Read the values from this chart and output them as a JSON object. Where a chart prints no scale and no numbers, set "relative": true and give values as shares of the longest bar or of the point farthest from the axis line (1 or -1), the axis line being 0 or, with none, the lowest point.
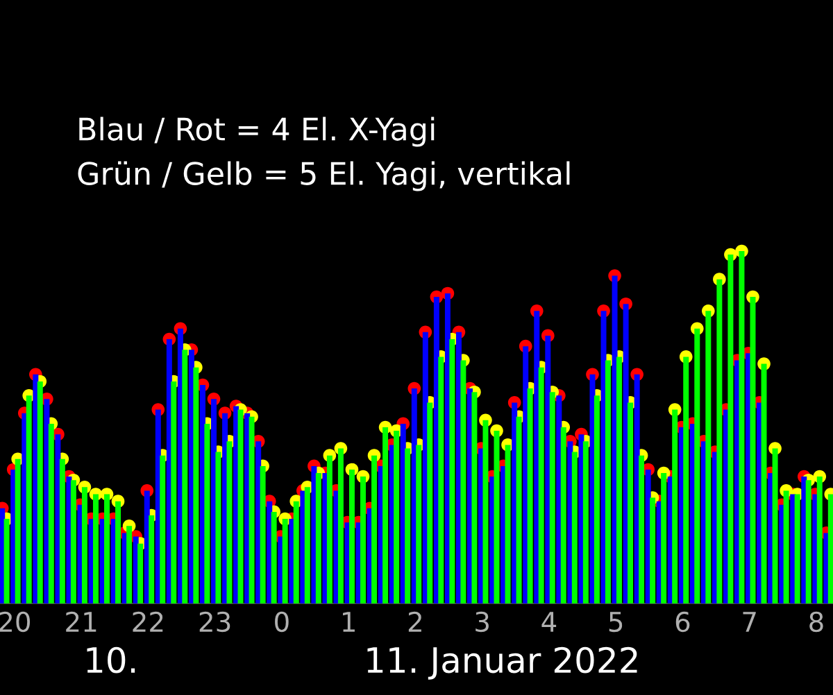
{
  "chart_data": {
    "type": "bar",
    "relative": true,
    "grid": false,
    "xlim": [
      "2022-01-10T19:47",
      "2022-01-11T08:15"
    ],
    "xticks": [
      {
        "value": "2022-01-10T20:00",
        "label": "20"
      },
      {
        "value": "2022-01-10T21:00",
        "label": "21"
      },
      {
        "value": "2022-01-10T22:00",
        "label": "22"
      },
      {
        "value": "2022-01-10T23:00",
        "label": "23"
      },
      {
        "value": "2022-01-11T00:00",
        "label": "0"
      },
      {
        "value": "2022-01-11T01:00",
        "label": "1"
      },
      {
        "value": "2022-01-11T02:00",
        "label": "2"
      },
      {
        "value": "2022-01-11T03:00",
        "label": "3"
      },
      {
        "value": "2022-01-11T04:00",
        "label": "4"
      },
      {
        "value": "2022-01-11T05:00",
        "label": "5"
      },
      {
        "value": "2022-01-11T06:00",
        "label": "6"
      },
      {
        "value": "2022-01-11T07:00",
        "label": "7"
      },
      {
        "value": "2022-01-11T08:00",
        "label": "8"
      }
    ],
    "tick_labels": "x",
    "series": [
      {
        "color": "#0000ff",
        "x": [
          "2022-01-10T19:49",
          "2022-01-10T19:59",
          "2022-01-10T20:09",
          "2022-01-10T20:19",
          "2022-01-10T20:29",
          "2022-01-10T20:39",
          "2022-01-10T20:49",
          "2022-01-10T20:59",
          "2022-01-10T21:09",
          "2022-01-10T21:19",
          "2022-01-10T21:29",
          "2022-01-10T21:39",
          "2022-01-10T21:49",
          "2022-01-10T21:59",
          "2022-01-10T22:09",
          "2022-01-10T22:19",
          "2022-01-10T22:29",
          "2022-01-10T22:39",
          "2022-01-10T22:49",
          "2022-01-10T22:59",
          "2022-01-10T23:09",
          "2022-01-10T23:19",
          "2022-01-10T23:29",
          "2022-01-10T23:39",
          "2022-01-10T23:49",
          "2022-01-10T23:59",
          "2022-01-11T00:09",
          "2022-01-11T00:19",
          "2022-01-11T00:29",
          "2022-01-11T00:39",
          "2022-01-11T00:49",
          "2022-01-11T00:59",
          "2022-01-11T01:09",
          "2022-01-11T01:19",
          "2022-01-11T01:29",
          "2022-01-11T01:39",
          "2022-01-11T01:49",
          "2022-01-11T01:59",
          "2022-01-11T02:09",
          "2022-01-11T02:19",
          "2022-01-11T02:29",
          "2022-01-11T02:39",
          "2022-01-11T02:49",
          "2022-01-11T02:59",
          "2022-01-11T03:09",
          "2022-01-11T03:19",
          "2022-01-11T03:29",
          "2022-01-11T03:39",
          "2022-01-11T03:49",
          "2022-01-11T03:59",
          "2022-01-11T04:09",
          "2022-01-11T04:19",
          "2022-01-11T04:29",
          "2022-01-11T04:39",
          "2022-01-11T04:49",
          "2022-01-11T04:59",
          "2022-01-11T05:09",
          "2022-01-11T05:19",
          "2022-01-11T05:29",
          "2022-01-11T05:39",
          "2022-01-11T05:49",
          "2022-01-11T05:59",
          "2022-01-11T06:09",
          "2022-01-11T06:19",
          "2022-01-11T06:29",
          "2022-01-11T06:39",
          "2022-01-11T06:49",
          "2022-01-11T06:59",
          "2022-01-11T07:09",
          "2022-01-11T07:19",
          "2022-01-11T07:29",
          "2022-01-11T07:39",
          "2022-01-11T07:49",
          "2022-01-11T07:59",
          "2022-01-11T08:09"
        ],
        "values": [
          0.27,
          0.38,
          0.54,
          0.65,
          0.58,
          0.48,
          0.36,
          0.28,
          0.24,
          0.24,
          0.24,
          0.2,
          0.19,
          0.32,
          0.55,
          0.75,
          0.78,
          0.72,
          0.62,
          0.58,
          0.54,
          0.56,
          0.54,
          0.46,
          0.29,
          0.19,
          0.24,
          0.32,
          0.39,
          0.37,
          0.32,
          0.23,
          0.23,
          0.27,
          0.39,
          0.45,
          0.51,
          0.61,
          0.77,
          0.87,
          0.88,
          0.77,
          0.61,
          0.44,
          0.36,
          0.39,
          0.57,
          0.73,
          0.83,
          0.76,
          0.59,
          0.46,
          0.48,
          0.65,
          0.83,
          0.93,
          0.85,
          0.65,
          0.38,
          0.29,
          0.36,
          0.5,
          0.51,
          0.46,
          0.43,
          0.55,
          0.69,
          0.71,
          0.57,
          0.37,
          0.28,
          0.31,
          0.36,
          0.31,
          0.2
        ]
      },
      {
        "color": "#00ff00",
        "x": [
          "2022-01-10T19:53",
          "2022-01-10T20:03",
          "2022-01-10T20:13",
          "2022-01-10T20:23",
          "2022-01-10T20:33",
          "2022-01-10T20:43",
          "2022-01-10T20:53",
          "2022-01-10T21:03",
          "2022-01-10T21:13",
          "2022-01-10T21:23",
          "2022-01-10T21:33",
          "2022-01-10T21:43",
          "2022-01-10T21:53",
          "2022-01-10T22:03",
          "2022-01-10T22:13",
          "2022-01-10T22:23",
          "2022-01-10T22:33",
          "2022-01-10T22:43",
          "2022-01-10T22:53",
          "2022-01-10T23:03",
          "2022-01-10T23:13",
          "2022-01-10T23:23",
          "2022-01-10T23:33",
          "2022-01-10T23:43",
          "2022-01-10T23:53",
          "2022-01-11T00:03",
          "2022-01-11T00:13",
          "2022-01-11T00:23",
          "2022-01-11T00:33",
          "2022-01-11T00:43",
          "2022-01-11T00:53",
          "2022-01-11T01:03",
          "2022-01-11T01:13",
          "2022-01-11T01:23",
          "2022-01-11T01:33",
          "2022-01-11T01:43",
          "2022-01-11T01:53",
          "2022-01-11T02:03",
          "2022-01-11T02:13",
          "2022-01-11T02:23",
          "2022-01-11T02:33",
          "2022-01-11T02:43",
          "2022-01-11T02:53",
          "2022-01-11T03:03",
          "2022-01-11T03:13",
          "2022-01-11T03:23",
          "2022-01-11T03:33",
          "2022-01-11T03:43",
          "2022-01-11T03:53",
          "2022-01-11T04:03",
          "2022-01-11T04:13",
          "2022-01-11T04:23",
          "2022-01-11T04:33",
          "2022-01-11T04:43",
          "2022-01-11T04:53",
          "2022-01-11T05:03",
          "2022-01-11T05:13",
          "2022-01-11T05:23",
          "2022-01-11T05:33",
          "2022-01-11T05:43",
          "2022-01-11T05:53",
          "2022-01-11T06:03",
          "2022-01-11T06:13",
          "2022-01-11T06:23",
          "2022-01-11T06:33",
          "2022-01-11T06:43",
          "2022-01-11T06:53",
          "2022-01-11T07:03",
          "2022-01-11T07:13",
          "2022-01-11T07:23",
          "2022-01-11T07:33",
          "2022-01-11T07:43",
          "2022-01-11T07:53",
          "2022-01-11T08:03",
          "2022-01-11T08:13"
        ],
        "values": [
          0.24,
          0.41,
          0.59,
          0.63,
          0.51,
          0.41,
          0.35,
          0.33,
          0.31,
          0.31,
          0.29,
          0.22,
          0.17,
          0.25,
          0.42,
          0.63,
          0.72,
          0.67,
          0.51,
          0.43,
          0.46,
          0.55,
          0.53,
          0.39,
          0.26,
          0.24,
          0.29,
          0.33,
          0.37,
          0.42,
          0.44,
          0.38,
          0.36,
          0.42,
          0.5,
          0.49,
          0.44,
          0.45,
          0.57,
          0.7,
          0.75,
          0.69,
          0.6,
          0.52,
          0.49,
          0.45,
          0.53,
          0.61,
          0.67,
          0.6,
          0.5,
          0.43,
          0.46,
          0.59,
          0.69,
          0.7,
          0.57,
          0.42,
          0.3,
          0.37,
          0.55,
          0.7,
          0.78,
          0.83,
          0.92,
          0.99,
          1.0,
          0.87,
          0.68,
          0.44,
          0.32,
          0.31,
          0.35,
          0.36,
          0.31
        ]
      },
      {
        "type": "scatter",
        "color": "#ff0000",
        "x": [
          "2022-01-10T19:49",
          "2022-01-10T19:59",
          "2022-01-10T20:09",
          "2022-01-10T20:19",
          "2022-01-10T20:29",
          "2022-01-10T20:39",
          "2022-01-10T20:49",
          "2022-01-10T20:59",
          "2022-01-10T21:09",
          "2022-01-10T21:19",
          "2022-01-10T21:29",
          "2022-01-10T21:39",
          "2022-01-10T21:49",
          "2022-01-10T21:59",
          "2022-01-10T22:09",
          "2022-01-10T22:19",
          "2022-01-10T22:29",
          "2022-01-10T22:39",
          "2022-01-10T22:49",
          "2022-01-10T22:59",
          "2022-01-10T23:09",
          "2022-01-10T23:19",
          "2022-01-10T23:29",
          "2022-01-10T23:39",
          "2022-01-10T23:49",
          "2022-01-10T23:59",
          "2022-01-11T00:09",
          "2022-01-11T00:19",
          "2022-01-11T00:29",
          "2022-01-11T00:39",
          "2022-01-11T00:49",
          "2022-01-11T00:59",
          "2022-01-11T01:09",
          "2022-01-11T01:19",
          "2022-01-11T01:29",
          "2022-01-11T01:39",
          "2022-01-11T01:49",
          "2022-01-11T01:59",
          "2022-01-11T02:09",
          "2022-01-11T02:19",
          "2022-01-11T02:29",
          "2022-01-11T02:39",
          "2022-01-11T02:49",
          "2022-01-11T02:59",
          "2022-01-11T03:09",
          "2022-01-11T03:19",
          "2022-01-11T03:29",
          "2022-01-11T03:39",
          "2022-01-11T03:49",
          "2022-01-11T03:59",
          "2022-01-11T04:09",
          "2022-01-11T04:19",
          "2022-01-11T04:29",
          "2022-01-11T04:39",
          "2022-01-11T04:49",
          "2022-01-11T04:59",
          "2022-01-11T05:09",
          "2022-01-11T05:19",
          "2022-01-11T05:29",
          "2022-01-11T05:39",
          "2022-01-11T05:49",
          "2022-01-11T05:59",
          "2022-01-11T06:09",
          "2022-01-11T06:19",
          "2022-01-11T06:29",
          "2022-01-11T06:39",
          "2022-01-11T06:49",
          "2022-01-11T06:59",
          "2022-01-11T07:09",
          "2022-01-11T07:19",
          "2022-01-11T07:29",
          "2022-01-11T07:39",
          "2022-01-11T07:49",
          "2022-01-11T07:59",
          "2022-01-11T08:09"
        ],
        "values": [
          0.27,
          0.38,
          0.54,
          0.65,
          0.58,
          0.48,
          0.36,
          0.28,
          0.24,
          0.24,
          0.24,
          0.2,
          0.19,
          0.32,
          0.55,
          0.75,
          0.78,
          0.72,
          0.62,
          0.58,
          0.54,
          0.56,
          0.54,
          0.46,
          0.29,
          0.19,
          0.24,
          0.32,
          0.39,
          0.37,
          0.32,
          0.23,
          0.23,
          0.27,
          0.39,
          0.45,
          0.51,
          0.61,
          0.77,
          0.87,
          0.88,
          0.77,
          0.61,
          0.44,
          0.36,
          0.39,
          0.57,
          0.73,
          0.83,
          0.76,
          0.59,
          0.46,
          0.48,
          0.65,
          0.83,
          0.93,
          0.85,
          0.65,
          0.38,
          0.29,
          0.36,
          0.5,
          0.51,
          0.46,
          0.43,
          0.55,
          0.69,
          0.71,
          0.57,
          0.37,
          0.28,
          0.31,
          0.36,
          0.31,
          0.2
        ]
      },
      {
        "type": "scatter",
        "color": "#ffff00",
        "x": [
          "2022-01-10T19:53",
          "2022-01-10T20:03",
          "2022-01-10T20:13",
          "2022-01-10T20:23",
          "2022-01-10T20:33",
          "2022-01-10T20:43",
          "2022-01-10T20:53",
          "2022-01-10T21:03",
          "2022-01-10T21:13",
          "2022-01-10T21:23",
          "2022-01-10T21:33",
          "2022-01-10T21:43",
          "2022-01-10T21:53",
          "2022-01-10T22:03",
          "2022-01-10T22:13",
          "2022-01-10T22:23",
          "2022-01-10T22:33",
          "2022-01-10T22:43",
          "2022-01-10T22:53",
          "2022-01-10T23:03",
          "2022-01-10T23:13",
          "2022-01-10T23:23",
          "2022-01-10T23:33",
          "2022-01-10T23:43",
          "2022-01-10T23:53",
          "2022-01-11T00:03",
          "2022-01-11T00:13",
          "2022-01-11T00:23",
          "2022-01-11T00:33",
          "2022-01-11T00:43",
          "2022-01-11T00:53",
          "2022-01-11T01:03",
          "2022-01-11T01:13",
          "2022-01-11T01:23",
          "2022-01-11T01:33",
          "2022-01-11T01:43",
          "2022-01-11T01:53",
          "2022-01-11T02:03",
          "2022-01-11T02:13",
          "2022-01-11T02:23",
          "2022-01-11T02:33",
          "2022-01-11T02:43",
          "2022-01-11T02:53",
          "2022-01-11T03:03",
          "2022-01-11T03:13",
          "2022-01-11T03:23",
          "2022-01-11T03:33",
          "2022-01-11T03:43",
          "2022-01-11T03:53",
          "2022-01-11T04:03",
          "2022-01-11T04:13",
          "2022-01-11T04:23",
          "2022-01-11T04:33",
          "2022-01-11T04:43",
          "2022-01-11T04:53",
          "2022-01-11T05:03",
          "2022-01-11T05:13",
          "2022-01-11T05:23",
          "2022-01-11T05:33",
          "2022-01-11T05:43",
          "2022-01-11T05:53",
          "2022-01-11T06:03",
          "2022-01-11T06:13",
          "2022-01-11T06:23",
          "2022-01-11T06:33",
          "2022-01-11T06:43",
          "2022-01-11T06:53",
          "2022-01-11T07:03",
          "2022-01-11T07:13",
          "2022-01-11T07:23",
          "2022-01-11T07:33",
          "2022-01-11T07:43",
          "2022-01-11T07:53",
          "2022-01-11T08:03",
          "2022-01-11T08:13"
        ],
        "values": [
          0.24,
          0.41,
          0.59,
          0.63,
          0.51,
          0.41,
          0.35,
          0.33,
          0.31,
          0.31,
          0.29,
          0.22,
          0.17,
          0.25,
          0.42,
          0.63,
          0.72,
          0.67,
          0.51,
          0.43,
          0.46,
          0.55,
          0.53,
          0.39,
          0.26,
          0.24,
          0.29,
          0.33,
          0.37,
          0.42,
          0.44,
          0.38,
          0.36,
          0.42,
          0.5,
          0.49,
          0.44,
          0.45,
          0.57,
          0.7,
          0.75,
          0.69,
          0.6,
          0.52,
          0.49,
          0.45,
          0.53,
          0.61,
          0.67,
          0.6,
          0.5,
          0.43,
          0.46,
          0.59,
          0.69,
          0.7,
          0.57,
          0.42,
          0.3,
          0.37,
          0.55,
          0.7,
          0.78,
          0.83,
          0.92,
          0.99,
          1.0,
          0.87,
          0.68,
          0.44,
          0.32,
          0.31,
          0.35,
          0.36,
          0.31
        ]
      }
    ],
    "annotations": [
      "Blau / Rot = 4 El. X-Yagi",
      "Grün / Gelb = 5 El. Yagi, vertikal",
      "10.",
      "11. Januar 2022"
    ]
  }
}
